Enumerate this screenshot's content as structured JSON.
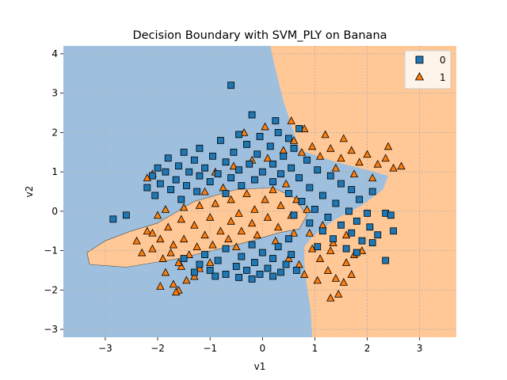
{
  "chart_data": {
    "type": "scatter",
    "title": "Decision Boundary with SVM_PLY on Banana",
    "xlabel": "v1",
    "ylabel": "v2",
    "xlim": [
      -3.8,
      3.7
    ],
    "ylim": [
      -3.2,
      4.2
    ],
    "xticks": [
      -3,
      -2,
      -1,
      0,
      1,
      2,
      3
    ],
    "yticks": [
      -3,
      -2,
      -1,
      0,
      1,
      2,
      3,
      4
    ],
    "grid": true,
    "legend_position": "top-right",
    "colors": {
      "class0_region": "#9ec0de",
      "class1_region": "#ffc896",
      "class0_marker": "#1f77b4",
      "class1_marker": "#ff7f0e"
    },
    "regions": {
      "class0_boundary": [
        [
          -3.8,
          4.2
        ],
        [
          0.15,
          4.2
        ],
        [
          0.25,
          3.6
        ],
        [
          0.4,
          2.8
        ],
        [
          0.55,
          2.2
        ],
        [
          0.72,
          1.55
        ],
        [
          1.4,
          1.25
        ],
        [
          2.0,
          1.05
        ],
        [
          2.4,
          0.9
        ],
        [
          2.3,
          0.55
        ],
        [
          1.9,
          0.15
        ],
        [
          1.4,
          -0.2
        ],
        [
          0.95,
          -0.65
        ],
        [
          0.8,
          -0.9
        ],
        [
          0.8,
          -1.3
        ],
        [
          0.85,
          -1.9
        ],
        [
          0.92,
          -2.5
        ],
        [
          0.95,
          -3.2
        ],
        [
          -3.8,
          -3.2
        ]
      ],
      "class1_blob": [
        [
          -2.0,
          -0.3
        ],
        [
          -1.3,
          0.25
        ],
        [
          -0.5,
          0.55
        ],
        [
          0.2,
          0.6
        ],
        [
          0.6,
          0.35
        ],
        [
          0.85,
          -0.1
        ],
        [
          0.7,
          -0.45
        ],
        [
          0.3,
          -0.55
        ],
        [
          -0.2,
          -0.75
        ],
        [
          -0.8,
          -0.95
        ],
        [
          -1.6,
          -1.2
        ],
        [
          -2.6,
          -1.42
        ],
        [
          -3.3,
          -1.35
        ],
        [
          -3.35,
          -1.05
        ],
        [
          -3.0,
          -0.75
        ],
        [
          -2.5,
          -0.5
        ]
      ]
    },
    "series": [
      {
        "name": "0",
        "marker": "square",
        "points": [
          [
            -0.6,
            3.2
          ],
          [
            -0.2,
            2.45
          ],
          [
            0.25,
            2.3
          ],
          [
            0.7,
            2.1
          ],
          [
            0.3,
            2.0
          ],
          [
            -0.45,
            1.95
          ],
          [
            -0.05,
            1.9
          ],
          [
            0.5,
            1.85
          ],
          [
            -0.8,
            1.8
          ],
          [
            -0.3,
            1.7
          ],
          [
            0.15,
            1.65
          ],
          [
            -1.2,
            1.6
          ],
          [
            0.6,
            1.6
          ],
          [
            -0.55,
            1.5
          ],
          [
            -1.5,
            1.5
          ],
          [
            -0.1,
            1.45
          ],
          [
            0.4,
            1.4
          ],
          [
            -0.95,
            1.4
          ],
          [
            -1.8,
            1.35
          ],
          [
            -1.3,
            1.3
          ],
          [
            0.85,
            1.3
          ],
          [
            -0.7,
            1.25
          ],
          [
            -0.25,
            1.2
          ],
          [
            0.2,
            1.2
          ],
          [
            -1.6,
            1.15
          ],
          [
            -2.0,
            1.1
          ],
          [
            -1.1,
            1.1
          ],
          [
            0.55,
            1.1
          ],
          [
            -0.45,
            1.05
          ],
          [
            1.05,
            1.05
          ],
          [
            -1.85,
            1.0
          ],
          [
            -1.4,
            1.0
          ],
          [
            0.0,
            1.0
          ],
          [
            -0.85,
            0.95
          ],
          [
            0.35,
            0.95
          ],
          [
            -2.1,
            0.9
          ],
          [
            -1.2,
            0.9
          ],
          [
            1.3,
            0.9
          ],
          [
            -0.6,
            0.85
          ],
          [
            0.7,
            0.85
          ],
          [
            -1.65,
            0.8
          ],
          [
            -0.15,
            0.8
          ],
          [
            -1.95,
            0.7
          ],
          [
            -1.0,
            0.75
          ],
          [
            0.2,
            0.75
          ],
          [
            -1.45,
            0.65
          ],
          [
            1.5,
            0.7
          ],
          [
            -2.2,
            0.6
          ],
          [
            -0.4,
            0.65
          ],
          [
            -1.75,
            0.55
          ],
          [
            0.9,
            0.6
          ],
          [
            -1.25,
            0.5
          ],
          [
            -0.7,
            0.45
          ],
          [
            1.7,
            0.55
          ],
          [
            -2.05,
            0.4
          ],
          [
            0.5,
            0.45
          ],
          [
            1.15,
            0.4
          ],
          [
            -1.55,
            0.3
          ],
          [
            2.1,
            0.5
          ],
          [
            1.85,
            0.3
          ],
          [
            0.75,
            0.25
          ],
          [
            1.4,
            0.2
          ],
          [
            -2.85,
            -0.2
          ],
          [
            -2.6,
            -0.1
          ],
          [
            1.0,
            0.05
          ],
          [
            1.65,
            0.0
          ],
          [
            2.0,
            -0.05
          ],
          [
            0.6,
            -0.1
          ],
          [
            1.25,
            -0.15
          ],
          [
            1.8,
            -0.25
          ],
          [
            2.35,
            -0.05
          ],
          [
            0.9,
            -0.3
          ],
          [
            1.5,
            -0.35
          ],
          [
            2.05,
            -0.4
          ],
          [
            2.45,
            -0.1
          ],
          [
            1.15,
            -0.5
          ],
          [
            1.7,
            -0.55
          ],
          [
            2.2,
            -0.6
          ],
          [
            0.5,
            -0.7
          ],
          [
            1.35,
            -0.7
          ],
          [
            1.9,
            -0.75
          ],
          [
            2.5,
            -0.5
          ],
          [
            -0.2,
            -0.85
          ],
          [
            0.3,
            -0.9
          ],
          [
            1.05,
            -0.9
          ],
          [
            1.6,
            -0.95
          ],
          [
            2.1,
            -0.8
          ],
          [
            -0.7,
            -0.95
          ],
          [
            0.0,
            -1.05
          ],
          [
            0.55,
            -1.1
          ],
          [
            1.8,
            -1.05
          ],
          [
            -1.1,
            -1.1
          ],
          [
            -0.4,
            -1.15
          ],
          [
            0.2,
            -1.2
          ],
          [
            -1.5,
            -1.2
          ],
          [
            -0.85,
            -1.25
          ],
          [
            -0.15,
            -1.3
          ],
          [
            0.45,
            -1.35
          ],
          [
            -1.2,
            -1.35
          ],
          [
            -0.5,
            -1.4
          ],
          [
            0.1,
            -1.45
          ],
          [
            -1.0,
            -1.5
          ],
          [
            -0.3,
            -1.5
          ],
          [
            0.35,
            -1.55
          ],
          [
            -0.7,
            -1.6
          ],
          [
            -0.05,
            -1.6
          ],
          [
            -1.3,
            -1.55
          ],
          [
            -0.45,
            -1.68
          ],
          [
            0.2,
            -1.65
          ],
          [
            0.65,
            -1.5
          ],
          [
            2.35,
            -1.25
          ],
          [
            -0.2,
            -1.72
          ],
          [
            -0.9,
            -1.65
          ]
        ]
      },
      {
        "name": "1",
        "marker": "triangle",
        "points": [
          [
            -1.95,
            -1.9
          ],
          [
            -1.7,
            -1.85
          ],
          [
            -1.6,
            -2.0
          ],
          [
            -1.45,
            -1.75
          ],
          [
            -1.3,
            -1.65
          ],
          [
            -1.65,
            -2.05
          ],
          [
            -1.85,
            -1.55
          ],
          [
            -1.55,
            -1.4
          ],
          [
            -1.2,
            -1.45
          ],
          [
            -1.0,
            -1.3
          ],
          [
            -1.9,
            -1.2
          ],
          [
            -1.75,
            -1.05
          ],
          [
            -1.4,
            -1.1
          ],
          [
            -2.1,
            -0.95
          ],
          [
            -2.2,
            -0.5
          ],
          [
            -2.1,
            -0.55
          ],
          [
            -1.95,
            -0.7
          ],
          [
            -1.7,
            -0.85
          ],
          [
            -1.5,
            -0.7
          ],
          [
            -1.25,
            -0.9
          ],
          [
            -1.1,
            -0.6
          ],
          [
            -0.95,
            -0.85
          ],
          [
            -0.8,
            -0.5
          ],
          [
            -0.65,
            -0.7
          ],
          [
            -1.3,
            -0.35
          ],
          [
            -1.55,
            -0.2
          ],
          [
            -1.8,
            -0.4
          ],
          [
            -1.0,
            -0.15
          ],
          [
            -0.6,
            -0.25
          ],
          [
            -0.4,
            -0.5
          ],
          [
            -0.2,
            -0.3
          ],
          [
            -0.45,
            -0.05
          ],
          [
            -0.15,
            0.05
          ],
          [
            0.1,
            -0.15
          ],
          [
            0.3,
            -0.4
          ],
          [
            0.05,
            0.3
          ],
          [
            0.35,
            0.15
          ],
          [
            0.55,
            -0.1
          ],
          [
            -0.3,
            0.45
          ],
          [
            -0.6,
            0.3
          ],
          [
            -0.9,
            0.2
          ],
          [
            -1.2,
            0.15
          ],
          [
            -1.5,
            0.1
          ],
          [
            -1.85,
            0.05
          ],
          [
            -2.0,
            -0.1
          ],
          [
            -0.75,
            0.6
          ],
          [
            -1.1,
            0.5
          ],
          [
            0.2,
            0.55
          ],
          [
            0.45,
            0.7
          ],
          [
            0.65,
            0.3
          ],
          [
            0.85,
            0.05
          ],
          [
            0.9,
            -0.55
          ],
          [
            0.95,
            -0.95
          ],
          [
            1.1,
            -1.2
          ],
          [
            1.25,
            -1.5
          ],
          [
            1.4,
            -1.7
          ],
          [
            1.55,
            -1.8
          ],
          [
            1.7,
            -1.6
          ],
          [
            1.45,
            -2.1
          ],
          [
            1.3,
            -2.2
          ],
          [
            1.05,
            -1.75
          ],
          [
            0.8,
            -1.6
          ],
          [
            1.6,
            -1.3
          ],
          [
            1.75,
            -1.1
          ],
          [
            1.9,
            -1.0
          ],
          [
            1.35,
            -0.8
          ],
          [
            0.7,
            -1.35
          ],
          [
            0.5,
            -1.2
          ],
          [
            -0.9,
            1.0
          ],
          [
            -0.55,
            1.15
          ],
          [
            -0.2,
            1.3
          ],
          [
            0.1,
            1.35
          ],
          [
            0.4,
            1.55
          ],
          [
            0.6,
            1.8
          ],
          [
            0.75,
            1.5
          ],
          [
            0.95,
            1.65
          ],
          [
            1.1,
            1.4
          ],
          [
            1.3,
            1.6
          ],
          [
            1.5,
            1.35
          ],
          [
            1.7,
            1.55
          ],
          [
            1.85,
            1.25
          ],
          [
            2.0,
            1.45
          ],
          [
            2.2,
            1.2
          ],
          [
            2.35,
            1.35
          ],
          [
            2.5,
            1.1
          ],
          [
            2.65,
            1.15
          ],
          [
            2.4,
            1.65
          ],
          [
            1.55,
            1.85
          ],
          [
            1.2,
            1.95
          ],
          [
            0.8,
            2.1
          ],
          [
            -0.35,
            2.0
          ],
          [
            0.05,
            2.15
          ],
          [
            0.55,
            2.3
          ],
          [
            1.4,
            1.1
          ],
          [
            1.75,
            0.95
          ],
          [
            2.1,
            0.85
          ],
          [
            -2.2,
            0.85
          ],
          [
            -2.1,
            0.95
          ],
          [
            -2.3,
            -1.05
          ],
          [
            -2.4,
            -0.75
          ],
          [
            -1.6,
            -1.3
          ],
          [
            -0.5,
            -0.9
          ],
          [
            -0.1,
            -0.6
          ],
          [
            0.25,
            -0.75
          ],
          [
            0.6,
            -0.55
          ],
          [
            1.15,
            -0.35
          ],
          [
            1.3,
            -1.0
          ],
          [
            1.6,
            -0.6
          ]
        ]
      }
    ]
  }
}
